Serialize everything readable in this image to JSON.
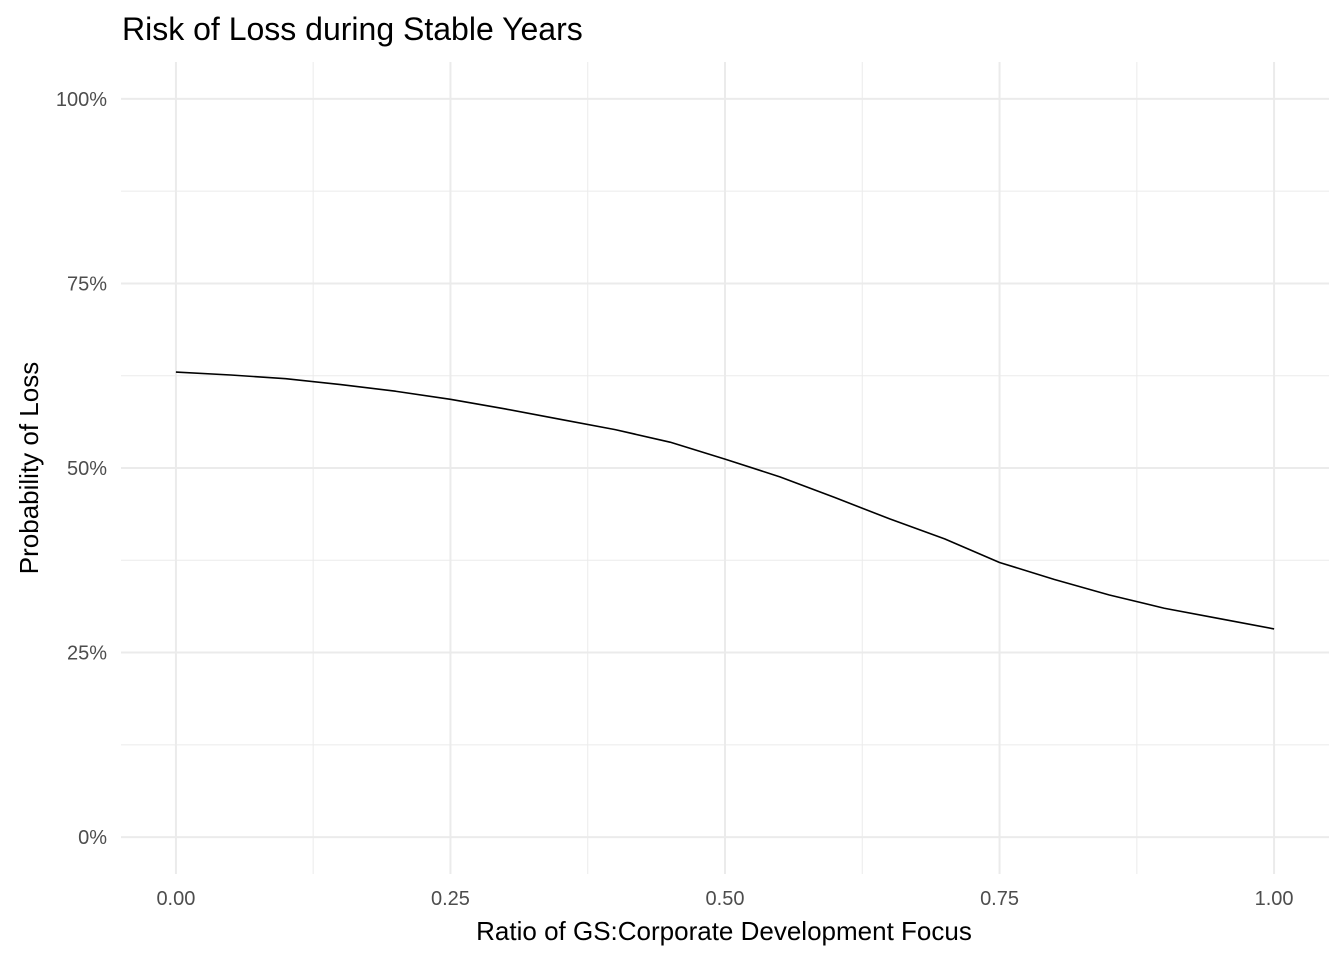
{
  "chart_data": {
    "type": "line",
    "title": "Risk of Loss during Stable Years",
    "xlabel": "Ratio of GS:Corporate Development Focus",
    "ylabel": "Probability of Loss",
    "xlim": [
      -0.05,
      1.05
    ],
    "ylim": [
      -0.05,
      1.05
    ],
    "x_ticks": [
      0,
      0.25,
      0.5,
      0.75,
      1
    ],
    "x_tick_labels": [
      "0.00",
      "0.25",
      "0.50",
      "0.75",
      "1.00"
    ],
    "x_minor_ticks": [
      0.125,
      0.375,
      0.625,
      0.875
    ],
    "y_ticks": [
      0,
      0.25,
      0.5,
      0.75,
      1
    ],
    "y_tick_labels": [
      "0%",
      "25%",
      "50%",
      "75%",
      "100%"
    ],
    "y_minor_ticks": [
      0.125,
      0.375,
      0.625,
      0.875
    ],
    "grid": true,
    "legend": "none",
    "line_color": "#000000",
    "x": [
      0.0,
      0.05,
      0.1,
      0.15,
      0.2,
      0.25,
      0.3,
      0.35,
      0.4,
      0.45,
      0.5,
      0.55,
      0.6,
      0.65,
      0.7,
      0.75,
      0.8,
      0.85,
      0.9,
      0.95,
      1.0
    ],
    "y": [
      0.63,
      0.626,
      0.621,
      0.613,
      0.604,
      0.593,
      0.58,
      0.566,
      0.552,
      0.535,
      0.512,
      0.488,
      0.46,
      0.431,
      0.404,
      0.372,
      0.349,
      0.328,
      0.31,
      0.296,
      0.282
    ]
  }
}
